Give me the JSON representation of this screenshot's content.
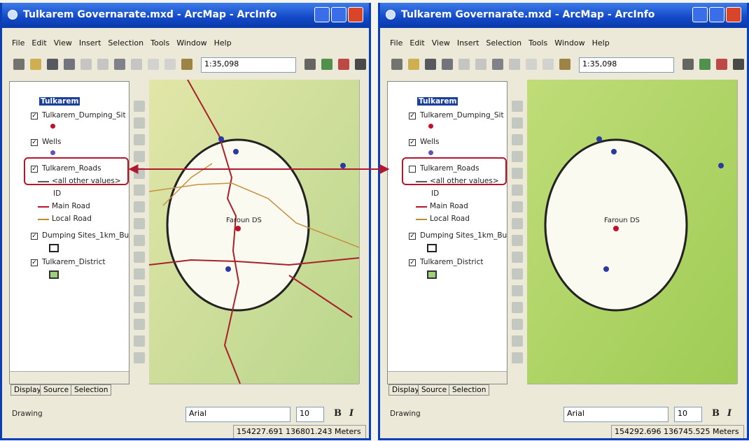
{
  "windows": [
    {
      "title": "Tulkarem Governarate.mxd - ArcMap - ArcInfo",
      "menu": [
        "File",
        "Edit",
        "View",
        "Insert",
        "Selection",
        "Tools",
        "Window",
        "Help"
      ],
      "scale": "1:35,098",
      "toc": {
        "root": "Tulkarem",
        "layers": [
          {
            "name": "Tulkarem_Dumping_Sit"
          },
          {
            "name": "Wells"
          },
          {
            "name": "Tulkarem_Roads",
            "checked": true,
            "legend": [
              "<all other values>",
              "ID",
              "Main Road",
              "Local Road"
            ]
          },
          {
            "name": "Dumping Sites_1km_Bu"
          },
          {
            "name": "Tulkarem_District"
          }
        ]
      },
      "map_label": "Faroun DS",
      "tabs": [
        "Display",
        "Source",
        "Selection"
      ],
      "drawing": "Drawing",
      "font": "Arial",
      "font_size": "10",
      "bold": "B",
      "italic": "I",
      "coordinates": "154227.691 136801.243 Meters",
      "roads_visible": true
    },
    {
      "title": "Tulkarem Governarate.mxd - ArcMap - ArcInfo",
      "menu": [
        "File",
        "Edit",
        "View",
        "Insert",
        "Selection",
        "Tools",
        "Window",
        "Help"
      ],
      "scale": "1:35,098",
      "toc": {
        "root": "Tulkarem",
        "layers": [
          {
            "name": "Tulkarem_Dumping_Sit"
          },
          {
            "name": "Wells"
          },
          {
            "name": "Tulkarem_Roads",
            "checked": false,
            "legend": [
              "<all other values>",
              "ID",
              "Main Road",
              "Local Road"
            ]
          },
          {
            "name": "Dumping Sites_1km_Bu"
          },
          {
            "name": "Tulkarem_District"
          }
        ]
      },
      "map_label": "Faroun DS",
      "tabs": [
        "Display",
        "Source",
        "Selection"
      ],
      "drawing": "Drawing",
      "font": "Arial",
      "font_size": "10",
      "bold": "B",
      "italic": "I",
      "coordinates": "154292.696 136745.525 Meters",
      "roads_visible": false
    }
  ]
}
